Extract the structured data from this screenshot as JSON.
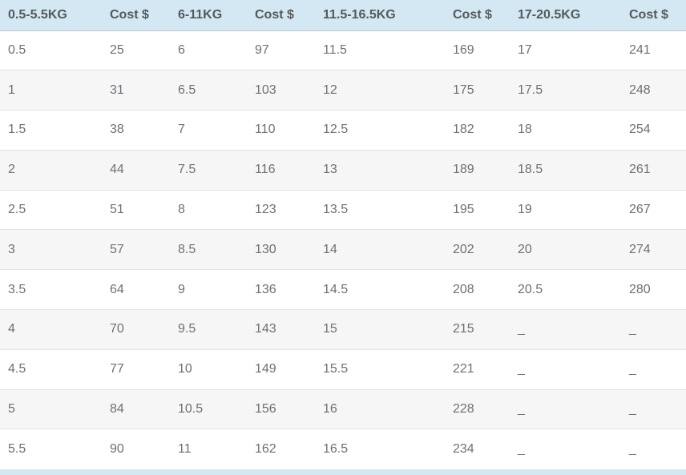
{
  "table": {
    "headers": [
      "0.5-5.5KG",
      "Cost $",
      "6-11KG",
      "Cost $",
      "11.5-16.5KG",
      "Cost $",
      "17-20.5KG",
      "Cost $"
    ],
    "rows": [
      [
        "0.5",
        "25",
        "6",
        "97",
        "11.5",
        "169",
        "17",
        "241"
      ],
      [
        "1",
        "31",
        "6.5",
        "103",
        "12",
        "175",
        "17.5",
        "248"
      ],
      [
        "1.5",
        "38",
        "7",
        "110",
        "12.5",
        "182",
        "18",
        "254"
      ],
      [
        "2",
        "44",
        "7.5",
        "116",
        "13",
        "189",
        "18.5",
        "261"
      ],
      [
        "2.5",
        "51",
        "8",
        "123",
        "13.5",
        "195",
        "19",
        "267"
      ],
      [
        "3",
        "57",
        "8.5",
        "130",
        "14",
        "202",
        "20",
        "274"
      ],
      [
        "3.5",
        "64",
        "9",
        "136",
        "14.5",
        "208",
        "20.5",
        "280"
      ],
      [
        "4",
        "70",
        "9.5",
        "143",
        "15",
        "215",
        "_",
        "_"
      ],
      [
        "4.5",
        "77",
        "10",
        "149",
        "15.5",
        "221",
        "_",
        "_"
      ],
      [
        "5",
        "84",
        "10.5",
        "156",
        "16",
        "228",
        "_",
        "_"
      ],
      [
        "5.5",
        "90",
        "11",
        "162",
        "16.5",
        "234",
        "_",
        "_"
      ]
    ],
    "empty_value_placeholder": "_"
  },
  "colors": {
    "header_bg": "#d3e8f2",
    "header_text": "#55595c",
    "cell_text": "#6d7073",
    "alt_row_bg": "#f6f6f6",
    "row_border": "#e3e3e3",
    "header_border": "#c6c6c6",
    "page_bg": "#ffffff"
  }
}
